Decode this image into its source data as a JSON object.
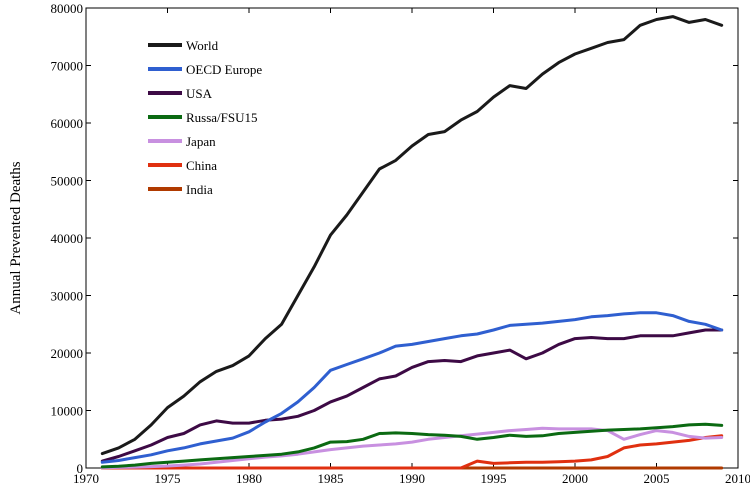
{
  "chart_data": {
    "type": "line",
    "title": "",
    "xlabel": "",
    "ylabel": "Annual Prevented Deaths",
    "xlim": [
      1970,
      2010
    ],
    "ylim": [
      0,
      80000
    ],
    "xticks": [
      "1970",
      "1975",
      "1980",
      "1985",
      "1990",
      "1995",
      "2000",
      "2005",
      "2010"
    ],
    "yticks": [
      "0",
      "10000",
      "20000",
      "30000",
      "40000",
      "50000",
      "60000",
      "70000",
      "80000"
    ],
    "grid": false,
    "legend_position": "top-left",
    "series": [
      {
        "name": "World",
        "color": "#1a1a1a",
        "x": [
          1971,
          1972,
          1973,
          1974,
          1975,
          1976,
          1977,
          1978,
          1979,
          1980,
          1981,
          1982,
          1983,
          1984,
          1985,
          1986,
          1987,
          1988,
          1989,
          1990,
          1991,
          1992,
          1993,
          1994,
          1995,
          1996,
          1997,
          1998,
          1999,
          2000,
          2001,
          2002,
          2003,
          2004,
          2005,
          2006,
          2007,
          2008,
          2009
        ],
        "y": [
          2500,
          3500,
          5000,
          7500,
          10500,
          12500,
          15000,
          16800,
          17800,
          19500,
          22500,
          25000,
          30000,
          35000,
          40500,
          44000,
          48000,
          52000,
          53500,
          56000,
          58000,
          58500,
          60500,
          62000,
          64500,
          66500,
          66000,
          68500,
          70500,
          72000,
          73000,
          74000,
          74500,
          77000,
          78000,
          78500,
          77500,
          78000,
          77000
        ]
      },
      {
        "name": "OECD Europe",
        "color": "#2f5fd0",
        "x": [
          1971,
          1972,
          1973,
          1974,
          1975,
          1976,
          1977,
          1978,
          1979,
          1980,
          1981,
          1982,
          1983,
          1984,
          1985,
          1986,
          1987,
          1988,
          1989,
          1990,
          1991,
          1992,
          1993,
          1994,
          1995,
          1996,
          1997,
          1998,
          1999,
          2000,
          2001,
          2002,
          2003,
          2004,
          2005,
          2006,
          2007,
          2008,
          2009
        ],
        "y": [
          1000,
          1300,
          1800,
          2300,
          3000,
          3500,
          4200,
          4700,
          5200,
          6300,
          8000,
          9500,
          11500,
          14000,
          17000,
          18000,
          19000,
          20000,
          21200,
          21500,
          22000,
          22500,
          23000,
          23300,
          24000,
          24800,
          25000,
          25200,
          25500,
          25800,
          26300,
          26500,
          26800,
          27000,
          27000,
          26500,
          25500,
          25000,
          24000
        ]
      },
      {
        "name": "USA",
        "color": "#3d0a45",
        "x": [
          1971,
          1972,
          1973,
          1974,
          1975,
          1976,
          1977,
          1978,
          1979,
          1980,
          1981,
          1982,
          1983,
          1984,
          1985,
          1986,
          1987,
          1988,
          1989,
          1990,
          1991,
          1992,
          1993,
          1994,
          1995,
          1996,
          1997,
          1998,
          1999,
          2000,
          2001,
          2002,
          2003,
          2004,
          2005,
          2006,
          2007,
          2008,
          2009
        ],
        "y": [
          1200,
          2000,
          3000,
          4000,
          5300,
          6000,
          7500,
          8200,
          7800,
          7800,
          8300,
          8500,
          9000,
          10000,
          11500,
          12500,
          14000,
          15500,
          16000,
          17500,
          18500,
          18700,
          18500,
          19500,
          20000,
          20500,
          19000,
          20000,
          21500,
          22500,
          22700,
          22500,
          22500,
          23000,
          23000,
          23000,
          23500,
          24000,
          24000
        ]
      },
      {
        "name": "Russa/FSU15",
        "color": "#0b6a12",
        "x": [
          1971,
          1972,
          1973,
          1974,
          1975,
          1976,
          1977,
          1978,
          1979,
          1980,
          1981,
          1982,
          1983,
          1984,
          1985,
          1986,
          1987,
          1988,
          1989,
          1990,
          1991,
          1992,
          1993,
          1994,
          1995,
          1996,
          1997,
          1998,
          1999,
          2000,
          2001,
          2002,
          2003,
          2004,
          2005,
          2006,
          2007,
          2008,
          2009
        ],
        "y": [
          200,
          300,
          500,
          800,
          1000,
          1200,
          1400,
          1600,
          1800,
          2000,
          2200,
          2400,
          2800,
          3500,
          4500,
          4600,
          5000,
          6000,
          6100,
          6000,
          5800,
          5700,
          5500,
          5000,
          5300,
          5700,
          5500,
          5600,
          6000,
          6200,
          6400,
          6600,
          6700,
          6800,
          7000,
          7200,
          7500,
          7600,
          7400
        ]
      },
      {
        "name": "Japan",
        "color": "#c890e0",
        "x": [
          1971,
          1972,
          1973,
          1974,
          1975,
          1976,
          1977,
          1978,
          1979,
          1980,
          1981,
          1982,
          1983,
          1984,
          1985,
          1986,
          1987,
          1988,
          1989,
          1990,
          1991,
          1992,
          1993,
          1994,
          1995,
          1996,
          1997,
          1998,
          1999,
          2000,
          2001,
          2002,
          2003,
          2004,
          2005,
          2006,
          2007,
          2008,
          2009
        ],
        "y": [
          50,
          100,
          150,
          250,
          350,
          500,
          700,
          1000,
          1300,
          1600,
          1900,
          2100,
          2400,
          2800,
          3200,
          3500,
          3800,
          4000,
          4200,
          4500,
          5000,
          5300,
          5600,
          5900,
          6200,
          6500,
          6700,
          6900,
          6800,
          6800,
          6800,
          6500,
          5000,
          5800,
          6500,
          6200,
          5500,
          5200,
          5300
        ]
      },
      {
        "name": "China",
        "color": "#e03010",
        "x": [
          1971,
          1975,
          1980,
          1985,
          1990,
          1993,
          1994,
          1995,
          1996,
          1997,
          1998,
          1999,
          2000,
          2001,
          2002,
          2003,
          2004,
          2005,
          2006,
          2007,
          2008,
          2009
        ],
        "y": [
          0,
          0,
          0,
          0,
          0,
          0,
          1200,
          800,
          900,
          1000,
          1000,
          1100,
          1200,
          1400,
          2000,
          3500,
          4000,
          4200,
          4500,
          4800,
          5300,
          5600
        ]
      },
      {
        "name": "India",
        "color": "#b03a00",
        "x": [
          1971,
          1980,
          1990,
          2000,
          2009
        ],
        "y": [
          0,
          0,
          0,
          0,
          0
        ]
      }
    ]
  }
}
